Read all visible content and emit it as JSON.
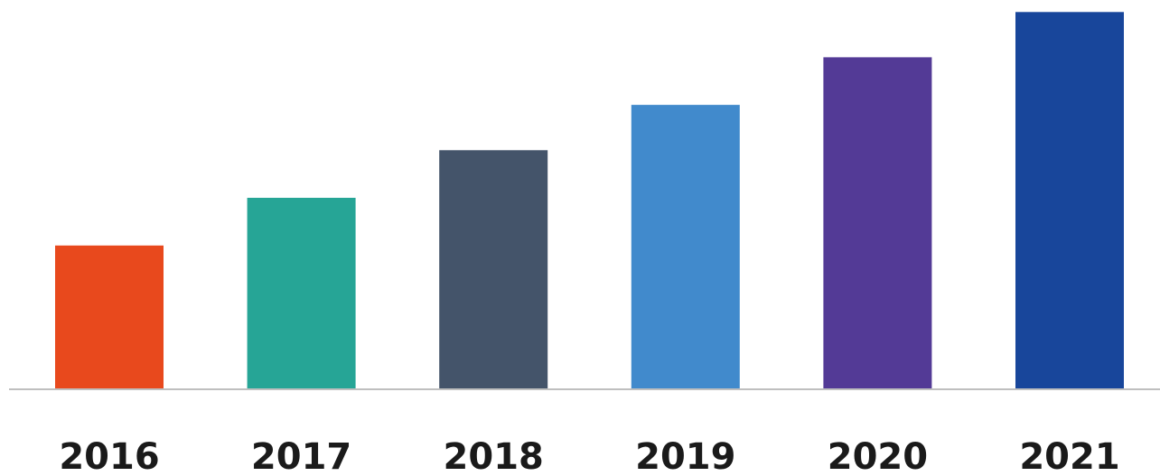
{
  "chart_data": {
    "type": "bar",
    "categories": [
      "2016",
      "2017",
      "2018",
      "2019",
      "2020",
      "2021"
    ],
    "values": [
      3.0,
      4.0,
      5.0,
      5.95,
      6.95,
      7.9
    ],
    "ylim": [
      0,
      8
    ],
    "colors": [
      "#e8491d",
      "#26a596",
      "#44546a",
      "#418acc",
      "#533a96",
      "#18469b"
    ],
    "axis_color": "#bfbfbf",
    "grid": false,
    "legend": "none",
    "title": "",
    "xlabel": "",
    "ylabel": ""
  }
}
